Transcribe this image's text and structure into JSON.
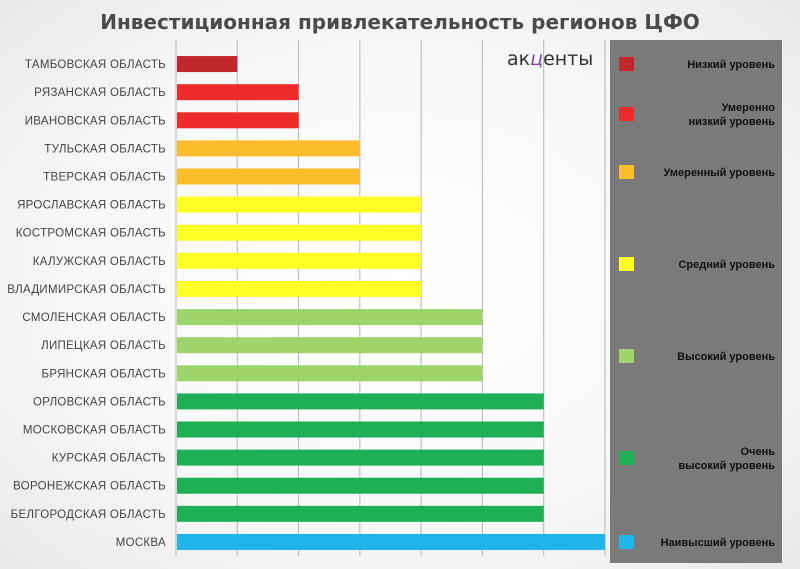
{
  "chart_data": {
    "type": "bar",
    "orientation": "horizontal",
    "title": "Инвестиционная привлекательность регионов ЦФО",
    "xlim": [
      0,
      7
    ],
    "grid": true,
    "legend_position": "right",
    "categories": [
      "ТАМБОВСКАЯ ОБЛАСТЬ",
      "РЯЗАНСКАЯ ОБЛАСТЬ",
      "ИВАНОВСКАЯ ОБЛАСТЬ",
      "ТУЛЬСКАЯ ОБЛАСТЬ",
      "ТВЕРСКАЯ ОБЛАСТЬ",
      "ЯРОСЛАВСКАЯ ОБЛАСТЬ",
      "КОСТРОМСКАЯ ОБЛАСТЬ",
      "КАЛУЖСКАЯ ОБЛАСТЬ",
      "ВЛАДИМИРСКАЯ ОБЛАСТЬ",
      "СМОЛЕНСКАЯ ОБЛАСТЬ",
      "ЛИПЕЦКАЯ ОБЛАСТЬ",
      "БРЯНСКАЯ ОБЛАСТЬ",
      "ОРЛОВСКАЯ ОБЛАСТЬ",
      "МОСКОВСКАЯ ОБЛАСТЬ",
      "КУРСКАЯ ОБЛАСТЬ",
      "ВОРОНЕЖСКАЯ ОБЛАСТЬ",
      "БЕЛГОРОДСКАЯ ОБЛАСТЬ",
      "МОСКВА"
    ],
    "values": [
      1,
      2,
      2,
      3,
      3,
      4,
      4,
      4,
      4,
      5,
      5,
      5,
      6,
      6,
      6,
      6,
      6,
      7
    ],
    "level_index": [
      0,
      1,
      1,
      2,
      2,
      3,
      3,
      3,
      3,
      4,
      4,
      4,
      5,
      5,
      5,
      5,
      5,
      6
    ],
    "levels": [
      {
        "name": "Низкий уровень",
        "lines": [
          "Низкий уровень"
        ],
        "color": "#c0282d"
      },
      {
        "name": "Умеренно низкий уровень",
        "lines": [
          "Умеренно",
          "низкий уровень"
        ],
        "color": "#ee2b2b"
      },
      {
        "name": "Умеренный уровень",
        "lines": [
          "Умеренный уровень"
        ],
        "color": "#fbbd2c"
      },
      {
        "name": "Средний уровень",
        "lines": [
          "Средний уровень"
        ],
        "color": "#ffff26"
      },
      {
        "name": "Высокий уровень",
        "lines": [
          "Высокий уровень"
        ],
        "color": "#9dd56a"
      },
      {
        "name": "Очень высокий уровень",
        "lines": [
          "Очень",
          "высокий уровень"
        ],
        "color": "#1fb056"
      },
      {
        "name": "Наивысший уровень",
        "lines": [
          "Наивысший уровень"
        ],
        "color": "#1fb4ea"
      }
    ]
  },
  "logo": {
    "part1": "ак",
    "part2": "ц",
    "part3": "енты"
  },
  "colors": {
    "panel": "#7a7a7a",
    "grid": "#b5b5b5",
    "axis_text": "#444444"
  }
}
